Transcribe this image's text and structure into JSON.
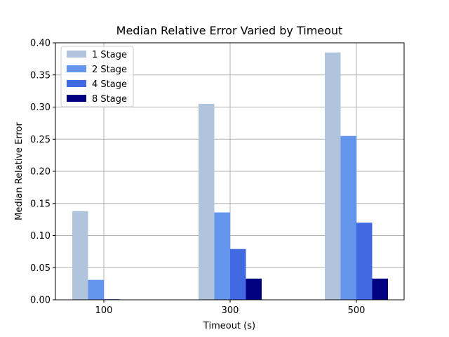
{
  "chart_data": {
    "type": "bar",
    "title": "Median Relative Error Varied by Timeout",
    "xlabel": "Timeout (s)",
    "ylabel": "Median Relative Error",
    "categories": [
      "100",
      "300",
      "500"
    ],
    "ylim": [
      0,
      0.4
    ],
    "yticks": [
      "0.00",
      "0.05",
      "0.10",
      "0.15",
      "0.20",
      "0.25",
      "0.30",
      "0.35",
      "0.40"
    ],
    "grid": true,
    "legend_position": "top-left",
    "series": [
      {
        "name": "1 Stage",
        "color": "#b0c4de",
        "values": [
          0.138,
          0.305,
          0.385
        ]
      },
      {
        "name": "2 Stage",
        "color": "#6495ed",
        "values": [
          0.031,
          0.136,
          0.255
        ]
      },
      {
        "name": "4 Stage",
        "color": "#4169e1",
        "values": [
          0.001,
          0.079,
          0.12
        ]
      },
      {
        "name": "8 Stage",
        "color": "#000080",
        "values": [
          0.0,
          0.033,
          0.033
        ]
      }
    ]
  }
}
